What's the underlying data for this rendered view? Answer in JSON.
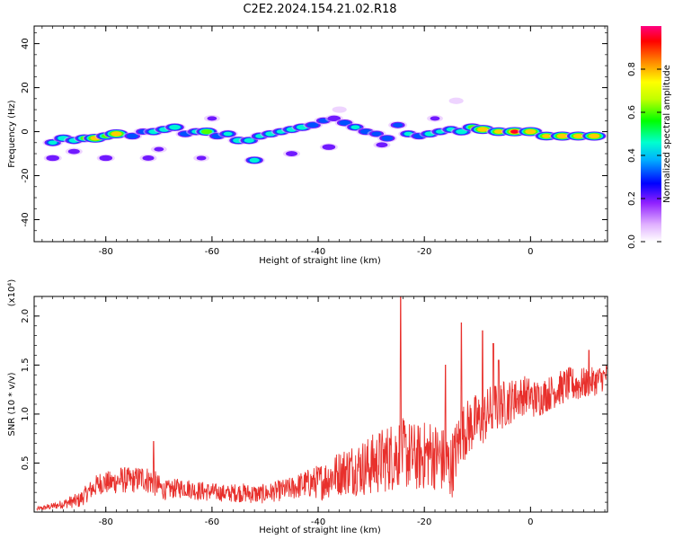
{
  "title": "C2E2.2024.154.21.02.R18",
  "chart_data": [
    {
      "type": "heatmap",
      "xlabel": "Height of straight line (km)",
      "ylabel": "Frequency (Hz)",
      "xlim": [
        -93.5,
        14.5
      ],
      "ylim": [
        -50,
        48
      ],
      "xticks": [
        -80,
        -60,
        -40,
        -20,
        0
      ],
      "yticks": [
        -40,
        -20,
        0,
        20,
        40
      ],
      "colorbar": {
        "label": "Normalized spectral amplitude",
        "range": [
          0,
          1
        ],
        "ticks": [
          0.0,
          0.2,
          0.4,
          0.6,
          0.8
        ]
      },
      "blobs": [
        {
          "x": -90,
          "y": -5,
          "a": 0.45
        },
        {
          "x": -88,
          "y": -3,
          "a": 0.55
        },
        {
          "x": -86,
          "y": -4,
          "a": 0.5
        },
        {
          "x": -84,
          "y": -3,
          "a": 0.6
        },
        {
          "x": -82,
          "y": -3,
          "a": 0.85
        },
        {
          "x": -80,
          "y": -2,
          "a": 0.6
        },
        {
          "x": -78,
          "y": -1,
          "a": 0.9
        },
        {
          "x": -75,
          "y": -2,
          "a": 0.4
        },
        {
          "x": -73,
          "y": 0,
          "a": 0.35
        },
        {
          "x": -71,
          "y": 0,
          "a": 0.5
        },
        {
          "x": -69,
          "y": 1,
          "a": 0.5
        },
        {
          "x": -67,
          "y": 2,
          "a": 0.55
        },
        {
          "x": -65,
          "y": -1,
          "a": 0.4
        },
        {
          "x": -63,
          "y": 0,
          "a": 0.45
        },
        {
          "x": -61,
          "y": 0,
          "a": 0.7
        },
        {
          "x": -59,
          "y": -2,
          "a": 0.4
        },
        {
          "x": -57,
          "y": -1,
          "a": 0.45
        },
        {
          "x": -55,
          "y": -4,
          "a": 0.55
        },
        {
          "x": -53,
          "y": -4,
          "a": 0.5
        },
        {
          "x": -51,
          "y": -2,
          "a": 0.45
        },
        {
          "x": -49,
          "y": -1,
          "a": 0.5
        },
        {
          "x": -47,
          "y": 0,
          "a": 0.45
        },
        {
          "x": -45,
          "y": 1,
          "a": 0.5
        },
        {
          "x": -43,
          "y": 2,
          "a": 0.55
        },
        {
          "x": -41,
          "y": 3,
          "a": 0.4
        },
        {
          "x": -39,
          "y": 5,
          "a": 0.35
        },
        {
          "x": -37,
          "y": 6,
          "a": 0.3
        },
        {
          "x": -35,
          "y": 4,
          "a": 0.4
        },
        {
          "x": -33,
          "y": 2,
          "a": 0.45
        },
        {
          "x": -31,
          "y": 0,
          "a": 0.4
        },
        {
          "x": -29,
          "y": -1,
          "a": 0.35
        },
        {
          "x": -27,
          "y": -3,
          "a": 0.4
        },
        {
          "x": -25,
          "y": 3,
          "a": 0.35
        },
        {
          "x": -23,
          "y": -1,
          "a": 0.45
        },
        {
          "x": -21,
          "y": -2,
          "a": 0.4
        },
        {
          "x": -19,
          "y": -1,
          "a": 0.5
        },
        {
          "x": -17,
          "y": 0,
          "a": 0.45
        },
        {
          "x": -15,
          "y": 1,
          "a": 0.45
        },
        {
          "x": -13,
          "y": 0,
          "a": 0.55
        },
        {
          "x": -11,
          "y": 2,
          "a": 0.6
        },
        {
          "x": -9,
          "y": 1,
          "a": 0.9
        },
        {
          "x": -6,
          "y": 0,
          "a": 0.8
        },
        {
          "x": -3,
          "y": 0,
          "a": 0.95
        },
        {
          "x": 0,
          "y": 0,
          "a": 0.9
        },
        {
          "x": 3,
          "y": -2,
          "a": 0.8
        },
        {
          "x": 6,
          "y": -2,
          "a": 0.9
        },
        {
          "x": 9,
          "y": -2,
          "a": 0.85
        },
        {
          "x": 12,
          "y": -2,
          "a": 0.9
        },
        {
          "x": -52,
          "y": -13,
          "a": 0.5
        },
        {
          "x": -80,
          "y": -12,
          "a": 0.3
        },
        {
          "x": -72,
          "y": -12,
          "a": 0.25
        },
        {
          "x": -62,
          "y": -12,
          "a": 0.2
        },
        {
          "x": -90,
          "y": -12,
          "a": 0.3
        },
        {
          "x": -45,
          "y": -10,
          "a": 0.25
        },
        {
          "x": -38,
          "y": -7,
          "a": 0.3
        },
        {
          "x": -28,
          "y": -6,
          "a": 0.25
        },
        {
          "x": -18,
          "y": 6,
          "a": 0.2
        },
        {
          "x": -14,
          "y": 14,
          "a": 0.15
        },
        {
          "x": -36,
          "y": 10,
          "a": 0.15
        },
        {
          "x": -60,
          "y": 6,
          "a": 0.2
        },
        {
          "x": -70,
          "y": -8,
          "a": 0.2
        },
        {
          "x": -86,
          "y": -9,
          "a": 0.25
        }
      ]
    },
    {
      "type": "line",
      "xlabel": "Height of straight line (km)",
      "ylabel": "SNR (10 * v/v)",
      "yunit": "(x10⁴)",
      "xlim": [
        -93.5,
        14.5
      ],
      "ylim": [
        0,
        2.2
      ],
      "xticks": [
        -80,
        -60,
        -40,
        -20,
        0
      ],
      "yticks": [
        0.5,
        1.0,
        1.5,
        2.0
      ],
      "color": "#e8302c",
      "series": [
        {
          "x": [
            -93,
            -91,
            -89,
            -87,
            -85,
            -83,
            -81,
            -79,
            -77,
            -75,
            -73,
            -71,
            -69,
            -67,
            -65,
            -63,
            -61,
            -59,
            -57,
            -55,
            -53,
            -51,
            -49,
            -47,
            -45,
            -43,
            -41,
            -39,
            -37,
            -35,
            -33,
            -31,
            -29,
            -27,
            -25,
            -23,
            -21,
            -19,
            -17,
            -15,
            -13,
            -11,
            -9,
            -7,
            -5,
            -3,
            -1,
            1,
            3,
            5,
            7,
            9,
            11,
            13,
            14.5
          ],
          "y": [
            0.03,
            0.05,
            0.07,
            0.1,
            0.12,
            0.22,
            0.3,
            0.3,
            0.33,
            0.32,
            0.35,
            0.3,
            0.22,
            0.24,
            0.25,
            0.22,
            0.21,
            0.2,
            0.19,
            0.2,
            0.19,
            0.18,
            0.2,
            0.22,
            0.24,
            0.28,
            0.3,
            0.32,
            0.38,
            0.42,
            0.45,
            0.46,
            0.5,
            0.55,
            0.6,
            0.58,
            0.55,
            0.6,
            0.55,
            0.45,
            0.8,
            0.9,
            0.95,
            1.05,
            1.1,
            1.15,
            1.2,
            1.15,
            1.2,
            1.25,
            1.3,
            1.3,
            1.32,
            1.35,
            1.4
          ],
          "amp": [
            0.02,
            0.03,
            0.04,
            0.06,
            0.08,
            0.1,
            0.12,
            0.12,
            0.14,
            0.13,
            0.14,
            0.14,
            0.1,
            0.1,
            0.1,
            0.1,
            0.1,
            0.09,
            0.09,
            0.1,
            0.1,
            0.1,
            0.1,
            0.11,
            0.12,
            0.14,
            0.16,
            0.2,
            0.22,
            0.25,
            0.28,
            0.3,
            0.33,
            0.35,
            0.38,
            0.36,
            0.35,
            0.36,
            0.35,
            0.35,
            0.3,
            0.3,
            0.28,
            0.28,
            0.25,
            0.22,
            0.2,
            0.2,
            0.18,
            0.18,
            0.18,
            0.18,
            0.15,
            0.15,
            0.12
          ],
          "spikes": [
            [
              -71,
              0.72
            ],
            [
              -24.5,
              2.2
            ],
            [
              -13,
              1.93
            ],
            [
              -16,
              1.5
            ],
            [
              -9,
              1.85
            ],
            [
              -7,
              1.72
            ],
            [
              -6,
              1.55
            ],
            [
              -3,
              1.3
            ],
            [
              11,
              1.65
            ]
          ]
        }
      ]
    }
  ]
}
